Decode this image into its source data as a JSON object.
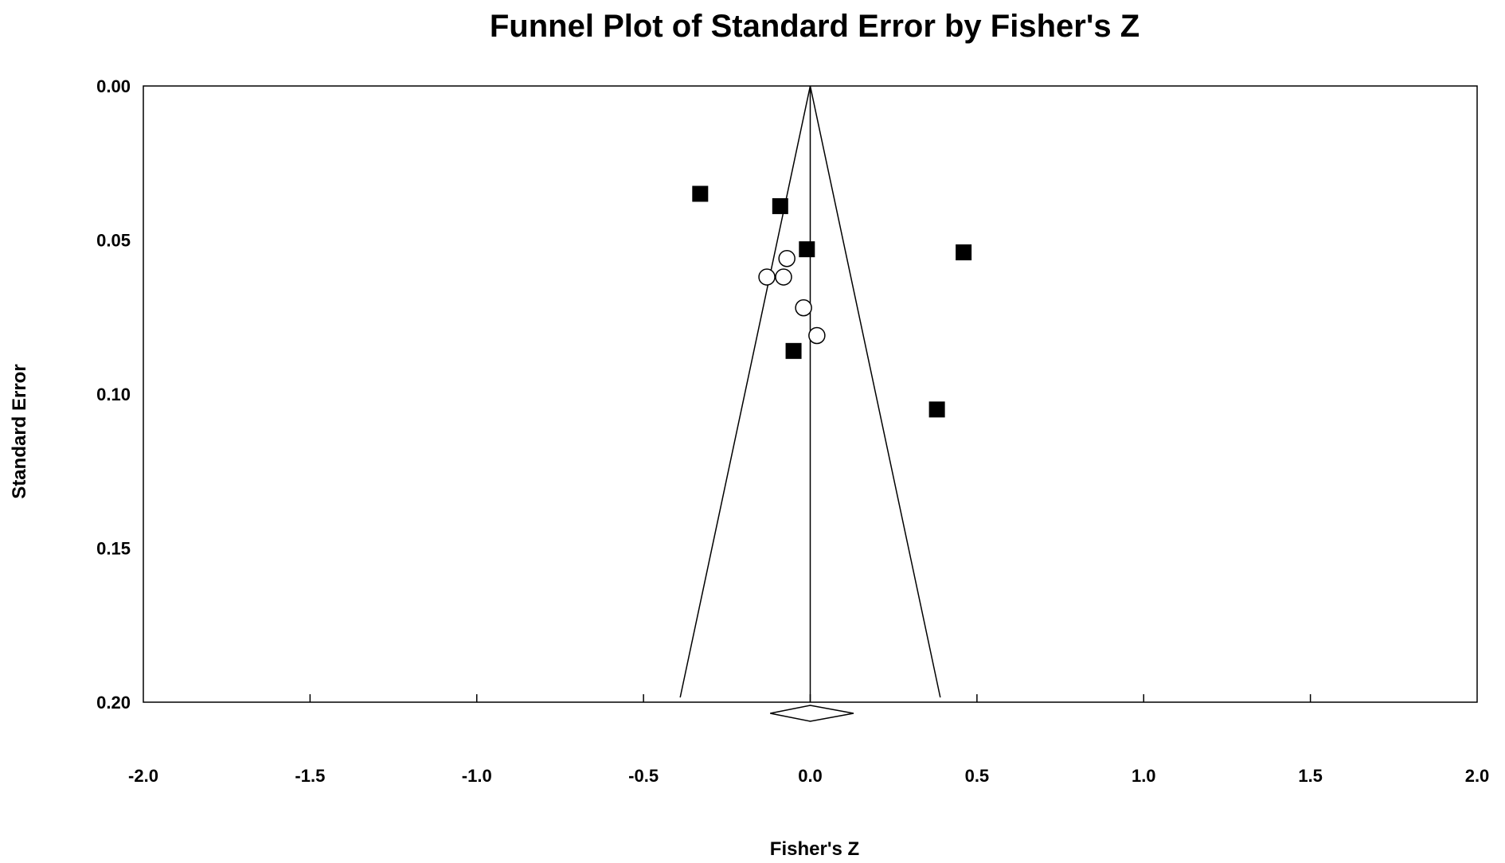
{
  "chart_data": {
    "type": "scatter",
    "title": "Funnel Plot of Standard Error by Fisher's Z",
    "xlabel": "Fisher's Z",
    "ylabel": "Standard Error",
    "xlim": [
      -2.0,
      2.0
    ],
    "ylim": [
      0.0,
      0.2
    ],
    "y_inverted": true,
    "x_ticks": [
      "-2.0",
      "-1.5",
      "-1.0",
      "-0.5",
      "0.0",
      "0.5",
      "1.0",
      "1.5",
      "2.0"
    ],
    "y_ticks": [
      "0.00",
      "0.05",
      "0.10",
      "0.15",
      "0.20"
    ],
    "grid": false,
    "legend": "none",
    "summary_effect": 0.0,
    "summary_ci": [
      -0.12,
      0.13
    ],
    "funnel_limit_at_max_se": [
      -0.39,
      0.39
    ],
    "series": [
      {
        "marker": "filled-square",
        "points": [
          {
            "x": -0.33,
            "y": 0.035
          },
          {
            "x": -0.09,
            "y": 0.039
          },
          {
            "x": -0.01,
            "y": 0.053
          },
          {
            "x": 0.46,
            "y": 0.054
          },
          {
            "x": -0.05,
            "y": 0.086
          },
          {
            "x": 0.38,
            "y": 0.105
          }
        ]
      },
      {
        "marker": "open-circle",
        "points": [
          {
            "x": -0.07,
            "y": 0.056
          },
          {
            "x": -0.13,
            "y": 0.062
          },
          {
            "x": -0.08,
            "y": 0.062
          },
          {
            "x": -0.02,
            "y": 0.072
          },
          {
            "x": 0.02,
            "y": 0.081
          }
        ]
      }
    ]
  }
}
